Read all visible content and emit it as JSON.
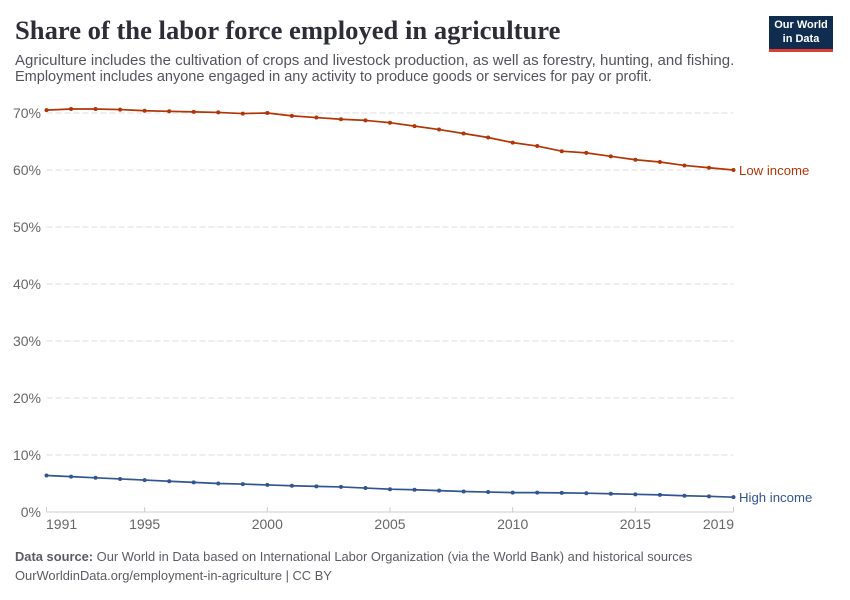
{
  "header": {
    "title": "Share of the labor force employed in agriculture",
    "subtitle_line1": "Agriculture includes the cultivation of crops and livestock production, as well as forestry, hunting, and fishing.",
    "subtitle_line2": "Employment includes anyone engaged in any activity to produce goods or services for pay or profit.",
    "logo": {
      "line1": "Our World",
      "line2": "in Data",
      "background_color": "#102D50",
      "accent_color": "#DC3C32"
    }
  },
  "chart_data": {
    "type": "line",
    "title": "Share of the labor force employed in agriculture",
    "x": [
      1991,
      1992,
      1993,
      1994,
      1995,
      1996,
      1997,
      1998,
      1999,
      2000,
      2001,
      2002,
      2003,
      2004,
      2005,
      2006,
      2007,
      2008,
      2009,
      2010,
      2011,
      2012,
      2013,
      2014,
      2015,
      2016,
      2017,
      2018,
      2019
    ],
    "xticks": [
      1991,
      1995,
      2000,
      2005,
      2010,
      2015,
      2019
    ],
    "yticks": [
      0,
      10,
      20,
      30,
      40,
      50,
      60,
      70
    ],
    "ytick_suffix": "%",
    "ylim": [
      0,
      70
    ],
    "grid": "horizontal-dashed",
    "legend_position": "line-end-labels",
    "axis_color": "#cccccc",
    "grid_color": "#dddddd",
    "tick_label_color": "#666666",
    "series": [
      {
        "name": "Low income",
        "color": "#B13507",
        "values": [
          70.5,
          70.7,
          70.7,
          70.6,
          70.4,
          70.3,
          70.2,
          70.1,
          69.9,
          70.0,
          69.5,
          69.2,
          68.9,
          68.7,
          68.3,
          67.7,
          67.1,
          66.4,
          65.7,
          64.8,
          64.2,
          63.3,
          63.0,
          62.4,
          61.8,
          61.4,
          60.8,
          60.4,
          60.0
        ]
      },
      {
        "name": "High income",
        "color": "#33558F",
        "values": [
          6.4,
          6.2,
          6.0,
          5.8,
          5.6,
          5.4,
          5.2,
          5.0,
          4.9,
          4.75,
          4.6,
          4.5,
          4.4,
          4.2,
          4.0,
          3.9,
          3.75,
          3.6,
          3.5,
          3.4,
          3.4,
          3.35,
          3.3,
          3.2,
          3.1,
          3.0,
          2.85,
          2.75,
          2.6
        ]
      }
    ]
  },
  "footer": {
    "source_label": "Data source:",
    "source_text": " Our World in Data based on International Labor Organization (via the World Bank) and historical sources",
    "link_line": "OurWorldinData.org/employment-in-agriculture | CC BY"
  }
}
